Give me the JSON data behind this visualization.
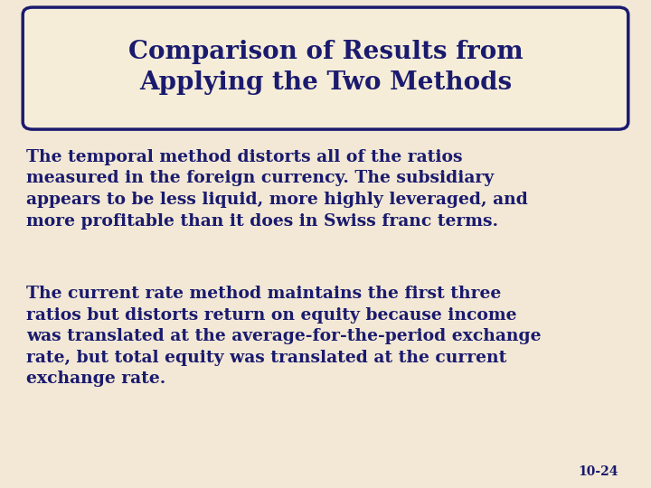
{
  "title": "Comparison of Results from\nApplying the Two Methods",
  "title_color": "#1a1a6e",
  "title_fontsize": 20,
  "bg_color": "#f2e8d5",
  "box_edge_color": "#1a1a6e",
  "box_face_color": "#f5edd8",
  "paragraph1": "The temporal method distorts all of the ratios\nmeasured in the foreign currency. The subsidiary\nappears to be less liquid, more highly leveraged, and\nmore profitable than it does in Swiss franc terms.",
  "paragraph2": "The current rate method maintains the first three\nratios but distorts return on equity because income\nwas translated at the average-for-the-period exchange\nrate, but total equity was translated at the current\nexchange rate.",
  "body_color": "#1a1a6e",
  "body_fontsize": 13.5,
  "footnote": "10-24",
  "footnote_color": "#1a1a6e",
  "footnote_fontsize": 10
}
